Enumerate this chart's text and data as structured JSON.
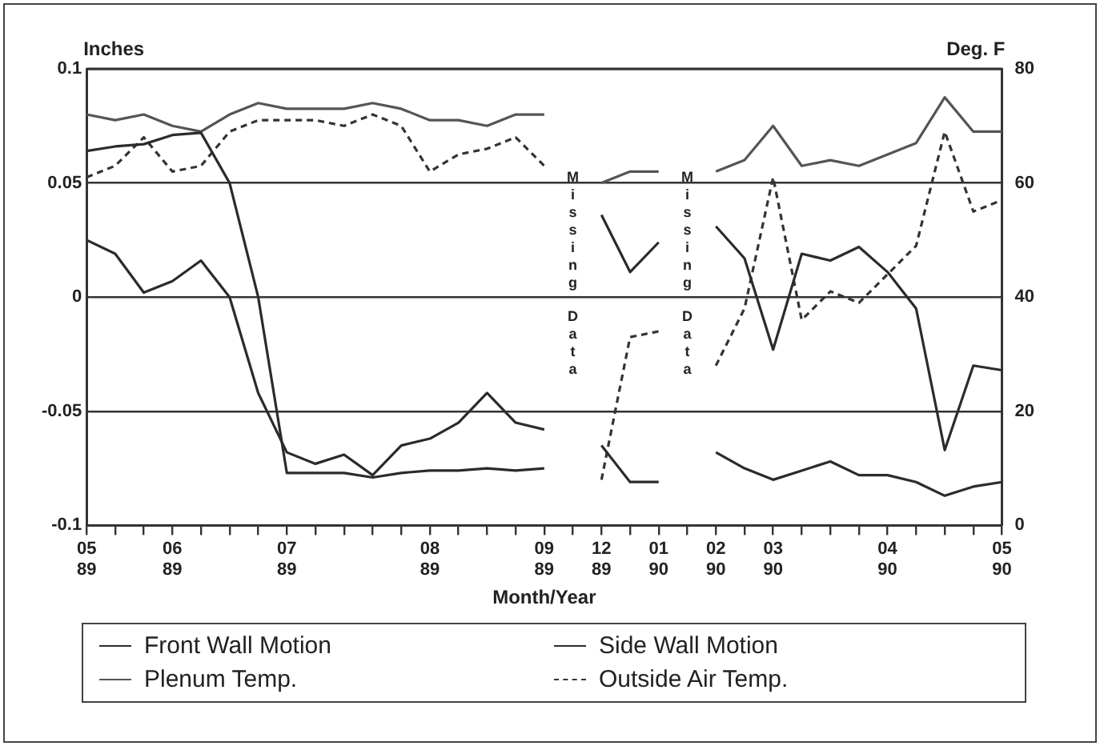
{
  "chart_data": {
    "type": "line",
    "xlabel": "Month/Year",
    "ylabel": "Inches",
    "y2label": "Deg. F",
    "categories": [
      "05\n89",
      null,
      null,
      "06\n89",
      null,
      null,
      null,
      "07\n89",
      null,
      null,
      null,
      null,
      "08\n89",
      null,
      null,
      null,
      "09\n89",
      null,
      "12\n89",
      null,
      "01\n90",
      null,
      "02\n90",
      null,
      "03\n90",
      null,
      null,
      null,
      "04\n90",
      null,
      null,
      null,
      "05\n90"
    ],
    "ylim": [
      -0.1,
      0.1
    ],
    "yticks": [
      -0.1,
      -0.05,
      0,
      0.05,
      0.1
    ],
    "y2lim": [
      0,
      80
    ],
    "y2ticks": [
      0,
      20,
      40,
      60,
      80
    ],
    "grid": "y",
    "legend": "bottom",
    "marker": "none",
    "annotations": [
      "Missing Data",
      "Missing Data"
    ],
    "series": [
      {
        "name": "Front Wall Motion",
        "color": "#2b2b2b",
        "line_style": "solid",
        "values": [
          0.064,
          0.066,
          0.067,
          0.071,
          0.072,
          0.05,
          0.0,
          -0.077,
          -0.077,
          -0.077,
          -0.079,
          -0.077,
          -0.076,
          -0.076,
          -0.075,
          -0.076,
          -0.075,
          null,
          -0.065,
          -0.081,
          -0.081,
          null,
          -0.068,
          -0.075,
          -0.08,
          -0.076,
          -0.072,
          -0.078,
          -0.078,
          -0.081,
          -0.087,
          -0.083,
          -0.081
        ]
      },
      {
        "name": "Side Wall Motion",
        "color": "#2b2b2b",
        "line_style": "solid",
        "values": [
          0.025,
          0.019,
          0.002,
          0.007,
          0.016,
          0.0,
          -0.042,
          -0.068,
          -0.073,
          -0.069,
          -0.078,
          -0.065,
          -0.062,
          -0.055,
          -0.042,
          -0.055,
          -0.058,
          null,
          0.036,
          0.011,
          0.024,
          null,
          0.031,
          0.017,
          -0.023,
          0.019,
          0.016,
          0.022,
          0.011,
          -0.005,
          -0.067,
          -0.03,
          -0.032
        ]
      },
      {
        "name": "Plenum Temp.",
        "color": "#555555",
        "line_style": "solid",
        "axis": "y2",
        "values": [
          72,
          71,
          72,
          70,
          69,
          72,
          74,
          73,
          73,
          73,
          74,
          73,
          71,
          71,
          70,
          72,
          72,
          null,
          60,
          62,
          62,
          null,
          62,
          64,
          70,
          63,
          64,
          63,
          65,
          67,
          75,
          69,
          69
        ]
      },
      {
        "name": "Outside Air Temp.",
        "color": "#333333",
        "line_style": "dashed",
        "axis": "y2",
        "values": [
          61,
          63,
          68,
          62,
          63,
          69,
          71,
          71,
          71,
          70,
          72,
          70,
          62,
          65,
          66,
          68,
          63,
          null,
          8,
          33,
          34,
          null,
          28,
          38,
          61,
          36,
          41,
          39,
          44,
          49,
          69,
          55,
          57
        ]
      }
    ]
  }
}
